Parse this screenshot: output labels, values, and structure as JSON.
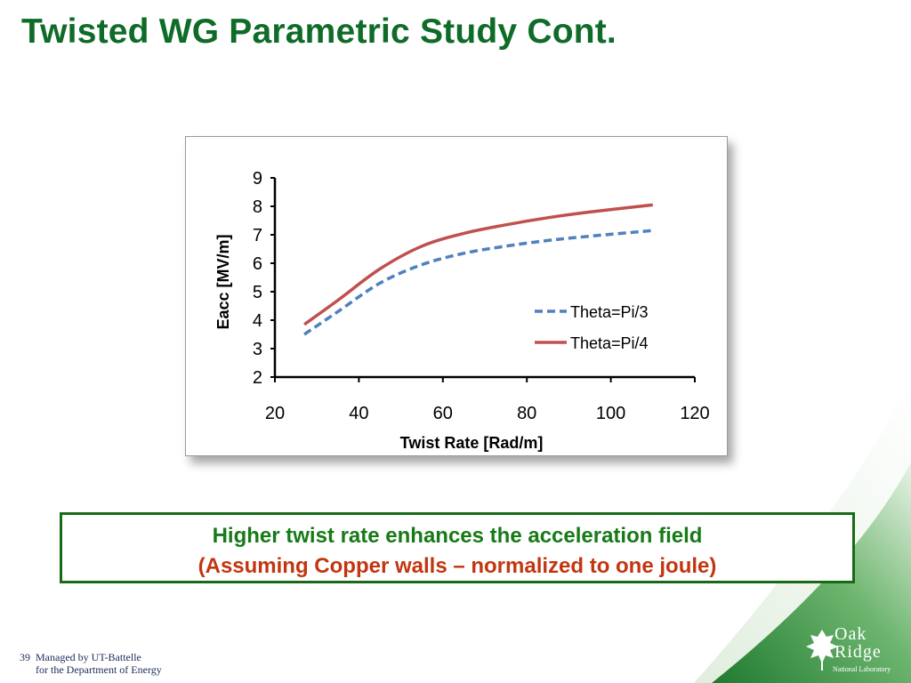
{
  "slide": {
    "title": "Twisted WG Parametric Study Cont.",
    "callout_line1": "Higher twist rate enhances the acceleration field",
    "callout_line2_open": "(",
    "callout_line2_text": "Assuming Copper walls – normalized to one joule",
    "callout_line2_close": ")",
    "page_number": "39",
    "footer_line1": "Managed by UT-Battelle",
    "footer_line2": "for the Department of Energy",
    "logo_line1": "Oak",
    "logo_line2": "Ridge",
    "logo_line3": "National Laboratory",
    "colors": {
      "title_green": "#0f6b28",
      "callout_border": "#176b17",
      "callout_green": "#177a17",
      "callout_orange": "#c2360f",
      "swoosh_green": "#2e8b3e"
    }
  },
  "chart_data": {
    "type": "line",
    "title": "",
    "xlabel": "Twist Rate [Rad/m]",
    "ylabel": "Eacc [MV/m]",
    "xlim": [
      20,
      120
    ],
    "ylim": [
      2,
      9
    ],
    "xticks": [
      20,
      40,
      60,
      80,
      100,
      120
    ],
    "yticks": [
      2,
      3,
      4,
      5,
      6,
      7,
      8,
      9
    ],
    "legend_position": "right-center",
    "grid": false,
    "series": [
      {
        "name": "Theta=Pi/3",
        "style": "dashed",
        "color": "#4f81bd",
        "x": [
          27,
          35,
          45,
          55,
          65,
          75,
          85,
          95,
          110
        ],
        "y": [
          3.5,
          4.3,
          5.3,
          5.95,
          6.35,
          6.6,
          6.8,
          6.95,
          7.15
        ]
      },
      {
        "name": "Theta=Pi/4",
        "style": "solid",
        "color": "#c0504d",
        "x": [
          27,
          35,
          45,
          55,
          65,
          75,
          85,
          95,
          110
        ],
        "y": [
          3.85,
          4.7,
          5.8,
          6.6,
          7.05,
          7.35,
          7.6,
          7.8,
          8.05
        ]
      }
    ]
  }
}
